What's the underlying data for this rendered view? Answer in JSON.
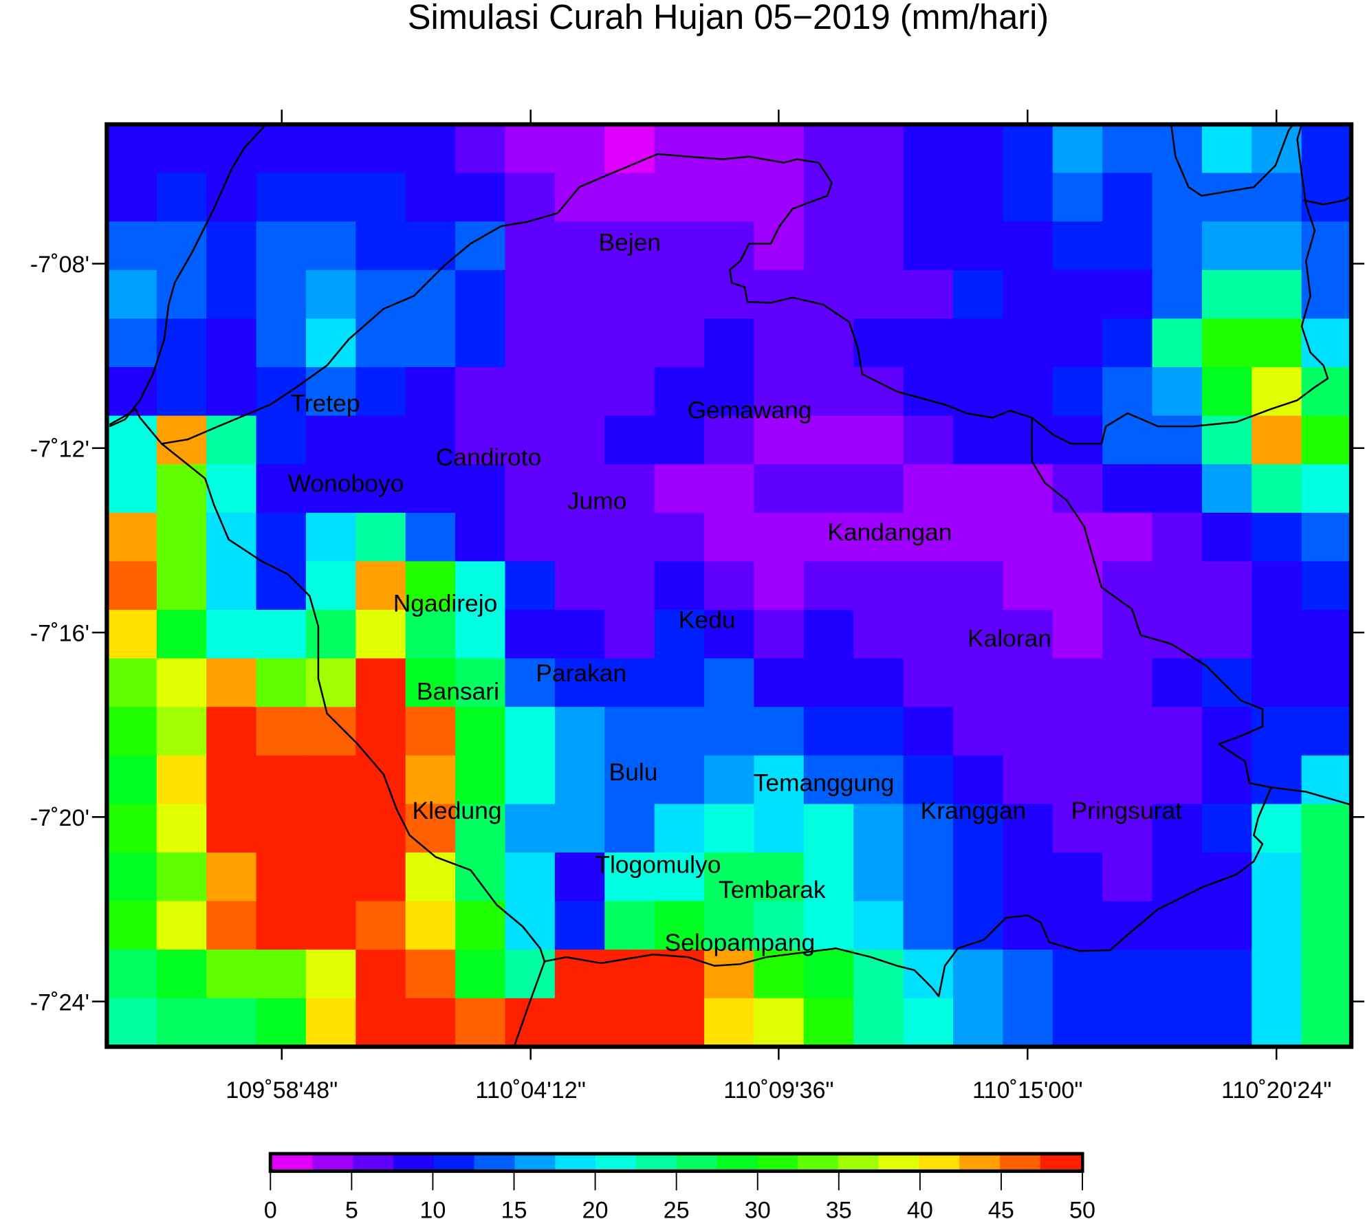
{
  "chart_data": {
    "type": "heatmap",
    "title": "Simulasi Curah Hujan 05−2019 (mm/hari)",
    "x_tick_labels": [
      "109˚58'48\"",
      "110˚04'12\"",
      "110˚09'36\"",
      "110˚15'00\"",
      "110˚20'24\""
    ],
    "y_tick_labels": [
      "-7˚08'",
      "-7˚12'",
      "-7˚16'",
      "-7˚20'",
      "-7˚24'"
    ],
    "colorbar": {
      "range": [
        0,
        50
      ],
      "step": 2.5,
      "tick_labels": [
        "0",
        "5",
        "10",
        "15",
        "20",
        "25",
        "30",
        "35",
        "40",
        "45",
        "50"
      ],
      "colors": [
        "#e100ff",
        "#a000ff",
        "#6000ff",
        "#2000ff",
        "#0020ff",
        "#0060ff",
        "#00a0ff",
        "#00e0ff",
        "#00ffe0",
        "#00ffa0",
        "#00ff60",
        "#00ff20",
        "#20ff00",
        "#60ff00",
        "#a0ff00",
        "#e0ff00",
        "#ffe000",
        "#ffa000",
        "#ff6000",
        "#ff2000"
      ]
    },
    "places": [
      "Bejen",
      "Tretep",
      "Gemawang",
      "Candiroto",
      "Wonoboyo",
      "Jumo",
      "Kandangan",
      "Ngadirejo",
      "Kedu",
      "Kaloran",
      "Parakan",
      "Bansari",
      "Bulu",
      "Temanggung",
      "Kledung",
      "Kranggan",
      "Pringsurat",
      "Tlogomulyo",
      "Tembarak",
      "Selopampang"
    ],
    "grid_values_mm": [
      [
        9,
        9,
        9,
        9,
        9,
        9,
        9,
        6,
        4,
        4,
        1,
        4,
        4,
        4,
        6,
        6,
        9,
        9,
        11,
        16,
        14,
        14,
        19,
        16,
        11
      ],
      [
        9,
        11,
        9,
        11,
        11,
        11,
        9,
        9,
        6,
        4,
        4,
        4,
        4,
        4,
        6,
        6,
        9,
        9,
        11,
        14,
        11,
        14,
        14,
        14,
        11
      ],
      [
        14,
        14,
        11,
        14,
        14,
        11,
        11,
        14,
        6,
        6,
        6,
        6,
        6,
        4,
        6,
        6,
        9,
        9,
        9,
        11,
        11,
        14,
        16,
        16,
        14
      ],
      [
        16,
        14,
        11,
        14,
        16,
        14,
        14,
        11,
        6,
        6,
        6,
        6,
        6,
        6,
        6,
        6,
        6,
        11,
        9,
        9,
        9,
        14,
        24,
        24,
        14
      ],
      [
        14,
        11,
        9,
        14,
        19,
        14,
        14,
        11,
        6,
        6,
        6,
        6,
        9,
        6,
        6,
        9,
        9,
        9,
        9,
        9,
        11,
        24,
        31,
        31,
        19
      ],
      [
        9,
        11,
        9,
        11,
        14,
        11,
        9,
        6,
        6,
        6,
        6,
        9,
        9,
        6,
        6,
        6,
        9,
        9,
        9,
        11,
        14,
        16,
        29,
        39,
        26
      ],
      [
        21,
        44,
        24,
        11,
        9,
        9,
        9,
        6,
        6,
        6,
        9,
        9,
        6,
        4,
        4,
        4,
        6,
        9,
        9,
        9,
        14,
        14,
        24,
        44,
        31
      ],
      [
        21,
        34,
        21,
        9,
        9,
        9,
        9,
        9,
        6,
        6,
        6,
        4,
        4,
        6,
        6,
        6,
        4,
        4,
        4,
        6,
        9,
        9,
        16,
        24,
        21
      ],
      [
        44,
        34,
        19,
        11,
        19,
        24,
        14,
        9,
        6,
        6,
        6,
        6,
        4,
        4,
        4,
        4,
        4,
        4,
        4,
        4,
        4,
        6,
        9,
        11,
        14
      ],
      [
        46,
        34,
        19,
        11,
        21,
        44,
        31,
        21,
        11,
        6,
        6,
        9,
        6,
        4,
        6,
        6,
        6,
        6,
        4,
        4,
        6,
        6,
        6,
        9,
        11
      ],
      [
        41,
        29,
        21,
        21,
        26,
        39,
        26,
        21,
        9,
        9,
        6,
        11,
        9,
        6,
        9,
        6,
        6,
        6,
        6,
        4,
        6,
        6,
        6,
        9,
        9
      ],
      [
        34,
        39,
        44,
        34,
        36,
        49,
        29,
        26,
        14,
        11,
        11,
        11,
        14,
        9,
        9,
        9,
        6,
        6,
        6,
        6,
        6,
        9,
        11,
        9,
        9
      ],
      [
        31,
        36,
        49,
        46,
        46,
        49,
        46,
        29,
        21,
        16,
        14,
        14,
        14,
        14,
        11,
        11,
        9,
        6,
        6,
        6,
        6,
        6,
        9,
        11,
        11
      ],
      [
        29,
        41,
        49,
        49,
        49,
        49,
        44,
        29,
        21,
        16,
        14,
        14,
        16,
        19,
        14,
        14,
        11,
        9,
        6,
        6,
        6,
        6,
        9,
        11,
        19
      ],
      [
        31,
        39,
        49,
        49,
        49,
        49,
        46,
        26,
        16,
        16,
        14,
        19,
        21,
        19,
        21,
        16,
        14,
        11,
        9,
        6,
        6,
        9,
        11,
        21,
        26
      ],
      [
        29,
        34,
        44,
        49,
        49,
        49,
        39,
        26,
        19,
        9,
        21,
        21,
        26,
        26,
        21,
        16,
        14,
        11,
        9,
        9,
        6,
        9,
        9,
        19,
        26
      ],
      [
        31,
        39,
        46,
        49,
        49,
        46,
        41,
        31,
        19,
        11,
        26,
        29,
        26,
        24,
        21,
        19,
        14,
        11,
        9,
        9,
        9,
        9,
        9,
        19,
        26
      ],
      [
        26,
        29,
        34,
        34,
        39,
        49,
        46,
        29,
        24,
        49,
        49,
        49,
        44,
        31,
        29,
        24,
        19,
        16,
        14,
        11,
        11,
        11,
        11,
        19,
        26
      ],
      [
        24,
        26,
        26,
        29,
        41,
        49,
        49,
        46,
        49,
        49,
        49,
        49,
        41,
        39,
        31,
        24,
        21,
        16,
        14,
        11,
        11,
        11,
        11,
        19,
        26
      ]
    ]
  }
}
